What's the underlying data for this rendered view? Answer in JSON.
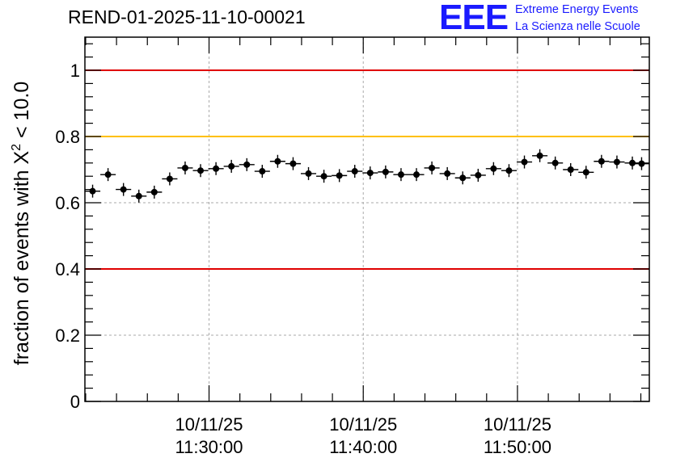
{
  "header": {
    "title": "REND-01-2025-11-10-00021",
    "logo_text": "EEE",
    "logo_line1": "Extreme Energy Events",
    "logo_line2": "La Scienza nelle Scuole",
    "logo_color": "#1a1aff"
  },
  "chart_data": {
    "type": "scatter",
    "title": "REND-01-2025-11-10-00021",
    "xlabel": "",
    "ylabel": "fraction of events with X² < 10.0",
    "ylabel_parts": {
      "prefix": "fraction of events with X",
      "sup": "2",
      "suffix": " < 10.0"
    },
    "xlim_minutes": [
      0,
      36.6
    ],
    "ylim": [
      0,
      1.1
    ],
    "y_ticks": [
      0,
      0.2,
      0.4,
      0.6,
      0.8,
      1
    ],
    "y_tick_labels": [
      "0",
      "0.2",
      "0.4",
      "0.6",
      "0.8",
      "1"
    ],
    "x_ticks_minutes": [
      8.05,
      18.05,
      28.05
    ],
    "x_tick_labels": [
      {
        "date": "10/11/25",
        "time": "11:30:00"
      },
      {
        "date": "10/11/25",
        "time": "11:40:00"
      },
      {
        "date": "10/11/25",
        "time": "11:50:00"
      }
    ],
    "grid": true,
    "reference_lines": [
      {
        "y": 1.0,
        "color": "#e00000"
      },
      {
        "y": 0.8,
        "color": "#ffc000"
      },
      {
        "y": 0.4,
        "color": "#e00000"
      }
    ],
    "series": [
      {
        "name": "fraction",
        "color": "#000000",
        "bin_width_minutes": 1,
        "x": [
          0.5,
          1.5,
          2.5,
          3.5,
          4.5,
          5.5,
          6.5,
          7.5,
          8.5,
          9.5,
          10.5,
          11.5,
          12.5,
          13.5,
          14.5,
          15.5,
          16.5,
          17.5,
          18.5,
          19.5,
          20.5,
          21.5,
          22.5,
          23.5,
          24.5,
          25.5,
          26.5,
          27.5,
          28.5,
          29.5,
          30.5,
          31.5,
          32.5,
          33.5,
          34.5,
          35.5,
          36.1
        ],
        "y": [
          0.635,
          0.685,
          0.64,
          0.62,
          0.632,
          0.672,
          0.705,
          0.697,
          0.703,
          0.71,
          0.715,
          0.695,
          0.725,
          0.718,
          0.688,
          0.68,
          0.682,
          0.695,
          0.69,
          0.693,
          0.685,
          0.685,
          0.705,
          0.688,
          0.675,
          0.683,
          0.703,
          0.697,
          0.723,
          0.742,
          0.72,
          0.7,
          0.692,
          0.725,
          0.723,
          0.72,
          0.718
        ]
      }
    ]
  }
}
